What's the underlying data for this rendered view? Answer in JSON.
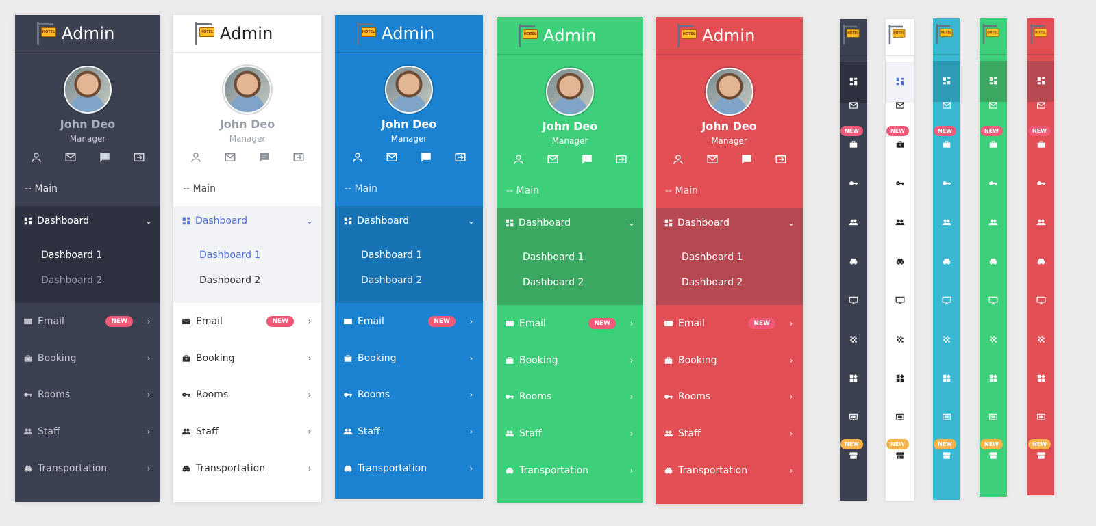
{
  "admin_title": "Admin",
  "hotel_sign": "HOTEL",
  "user": {
    "name": "John Deo",
    "role": "Manager"
  },
  "section_main": "-- Main",
  "dashboard": {
    "label": "Dashboard",
    "sub": [
      "Dashboard 1",
      "Dashboard 2"
    ]
  },
  "menu": [
    {
      "label": "Email",
      "badge": "NEW",
      "icon": "mail-icon"
    },
    {
      "label": "Booking",
      "icon": "briefcase-icon"
    },
    {
      "label": "Rooms",
      "icon": "key-icon"
    },
    {
      "label": "Staff",
      "icon": "people-icon"
    },
    {
      "label": "Transportation",
      "icon": "car-icon"
    }
  ],
  "badge_new": "NEW",
  "themes": [
    {
      "name": "dark",
      "bg": "#3c4151",
      "head": "#3c4151",
      "dash": "#2e3240",
      "text": "#ffffff"
    },
    {
      "name": "light",
      "bg": "#ffffff",
      "head": "#ffffff",
      "dash": "#f1f3f6",
      "text": "#333333",
      "accent": "#4f73d8"
    },
    {
      "name": "blue",
      "bg": "#1a82d0",
      "head": "#1a82d0",
      "dash": "#1873b5",
      "text": "#ffffff"
    },
    {
      "name": "green",
      "bg": "#3ecf7a",
      "head": "#3ecf7a",
      "dash": "#3aa860",
      "text": "#ffffff"
    },
    {
      "name": "red",
      "bg": "#e14f55",
      "head": "#e14f55",
      "dash": "#b54850",
      "text": "#ffffff"
    }
  ],
  "mini_themes": [
    {
      "bg": "#3c4151",
      "act": "#2e3240",
      "fg": "#ffffff"
    },
    {
      "bg": "#ffffff",
      "act": "#f1f3f6",
      "fg": "#222222"
    },
    {
      "bg": "#3ab7d1",
      "act": "#2d9bb4",
      "fg": "#ffffff"
    },
    {
      "bg": "#3ecf7a",
      "act": "#3aa860",
      "fg": "#ffffff"
    },
    {
      "bg": "#e14f55",
      "act": "#b54850",
      "fg": "#ffffff"
    }
  ]
}
